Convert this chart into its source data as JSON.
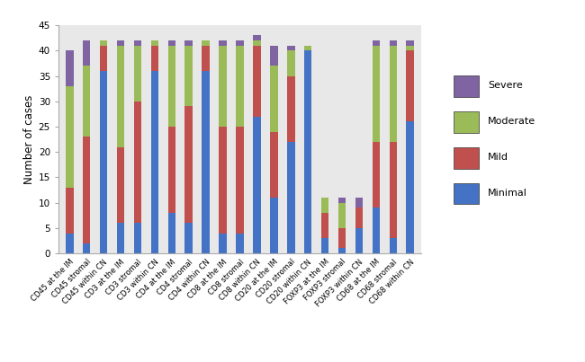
{
  "categories": [
    "CD45 at the IM",
    "CD45 stromal",
    "CD45 within CN",
    "CD3 at the IM",
    "CD3 stromal",
    "CD3 within CN",
    "CD4 at the IM",
    "CD4 stromal",
    "CD4 within CN",
    "CD8 at the IM",
    "CD8 stromal",
    "CD8 within CN",
    "CD20 at the IM",
    "CD20 stromal",
    "CD20 within CN",
    "FOXP3 at the IM",
    "FOXP3 stromal",
    "FOXP3 within CN",
    "CD68 at the IM",
    "CD68 stromal",
    "CD68 within CN"
  ],
  "minimal": [
    4,
    2,
    36,
    6,
    6,
    36,
    8,
    6,
    36,
    4,
    4,
    27,
    11,
    22,
    40,
    3,
    1,
    5,
    9,
    3,
    26
  ],
  "mild": [
    9,
    21,
    5,
    15,
    24,
    5,
    17,
    23,
    5,
    21,
    21,
    14,
    13,
    13,
    0,
    5,
    4,
    4,
    13,
    19,
    14
  ],
  "moderate": [
    20,
    14,
    1,
    20,
    11,
    1,
    16,
    12,
    1,
    16,
    16,
    1,
    13,
    5,
    1,
    3,
    5,
    0,
    19,
    19,
    1
  ],
  "severe": [
    7,
    5,
    0,
    1,
    1,
    0,
    1,
    1,
    0,
    1,
    1,
    1,
    4,
    1,
    0,
    0,
    1,
    2,
    1,
    1,
    1
  ],
  "colors": {
    "minimal": "#4472C4",
    "mild": "#C0504D",
    "moderate": "#9BBB59",
    "severe": "#8064A2"
  },
  "ylabel": "Number of cases",
  "ylim": [
    0,
    45
  ],
  "yticks": [
    0,
    5,
    10,
    15,
    20,
    25,
    30,
    35,
    40,
    45
  ],
  "legend_labels": [
    "Severe",
    "Moderate",
    "Mild",
    "Minimal"
  ],
  "legend_colors": [
    "#8064A2",
    "#9BBB59",
    "#C0504D",
    "#4472C4"
  ],
  "figsize": [
    6.5,
    4.03
  ],
  "dpi": 100
}
